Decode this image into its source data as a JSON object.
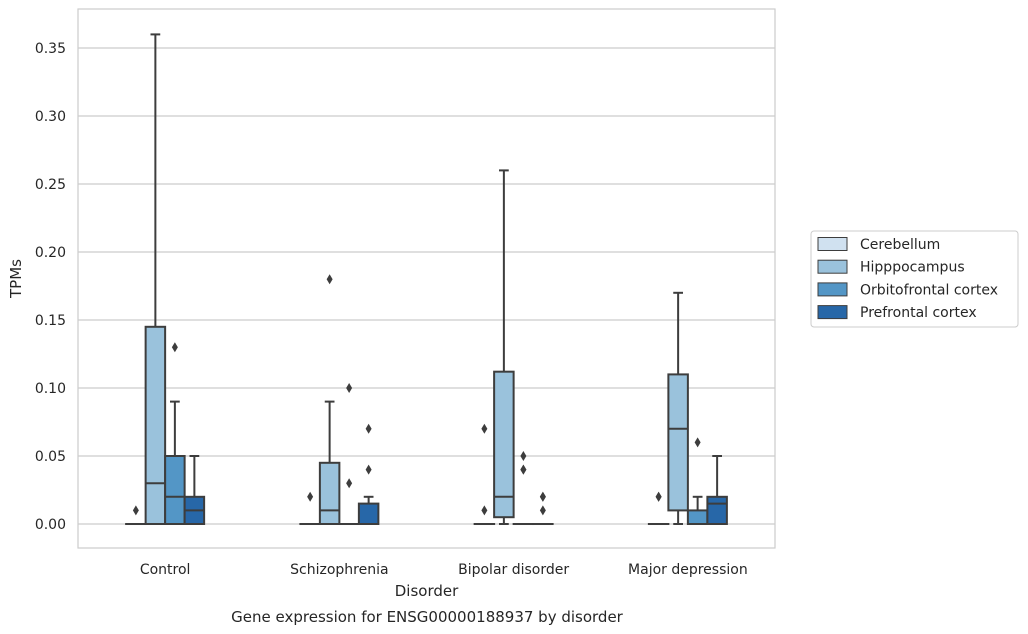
{
  "chart_data": {
    "type": "box",
    "title": "Gene expression for ENSG00000188937 by disorder",
    "xlabel": "Disorder",
    "ylabel": "TPMs",
    "ylim": [
      -0.017,
      0.375
    ],
    "yticks": [
      "0.00",
      "0.05",
      "0.10",
      "0.15",
      "0.20",
      "0.25",
      "0.30",
      "0.35"
    ],
    "ytick_values": [
      0,
      0.05,
      0.1,
      0.15,
      0.2,
      0.25,
      0.3,
      0.35
    ],
    "grid": true,
    "legend_position": "right",
    "categories": [
      "Control",
      "Schizophrenia",
      "Bipolar disorder",
      "Major depression"
    ],
    "series": [
      {
        "name": "Cerebellum",
        "color": "#d0e1f0",
        "boxes": [
          {
            "whislo": 0,
            "q1": 0,
            "med": 0,
            "q3": 0,
            "whishi": 0,
            "fliers": [
              0.01
            ]
          },
          {
            "whislo": 0,
            "q1": 0,
            "med": 0,
            "q3": 0,
            "whishi": 0,
            "fliers": [
              0.02
            ]
          },
          {
            "whislo": 0,
            "q1": 0,
            "med": 0,
            "q3": 0,
            "whishi": 0,
            "fliers": [
              0.01,
              0.07
            ]
          },
          {
            "whislo": 0,
            "q1": 0,
            "med": 0,
            "q3": 0,
            "whishi": 0,
            "fliers": [
              0.02,
              0.02
            ]
          }
        ]
      },
      {
        "name": "Hipppocampus",
        "color": "#9ac2dc",
        "boxes": [
          {
            "whislo": 0,
            "q1": 0,
            "med": 0.03,
            "q3": 0.145,
            "whishi": 0.36,
            "fliers": []
          },
          {
            "whislo": 0,
            "q1": 0,
            "med": 0.01,
            "q3": 0.045,
            "whishi": 0.09,
            "fliers": [
              0.18
            ]
          },
          {
            "whislo": 0,
            "q1": 0.005,
            "med": 0.02,
            "q3": 0.112,
            "whishi": 0.26,
            "fliers": []
          },
          {
            "whislo": 0,
            "q1": 0.01,
            "med": 0.07,
            "q3": 0.11,
            "whishi": 0.17,
            "fliers": []
          }
        ]
      },
      {
        "name": "Orbitofrontal cortex",
        "color": "#5396c6",
        "boxes": [
          {
            "whislo": 0,
            "q1": 0,
            "med": 0.02,
            "q3": 0.05,
            "whishi": 0.09,
            "fliers": [
              0.13
            ]
          },
          {
            "whislo": 0,
            "q1": 0,
            "med": 0,
            "q3": 0,
            "whishi": 0,
            "fliers": [
              0.03,
              0.1
            ]
          },
          {
            "whislo": 0,
            "q1": 0,
            "med": 0,
            "q3": 0,
            "whishi": 0,
            "fliers": [
              0.04,
              0.04,
              0.05
            ]
          },
          {
            "whislo": 0,
            "q1": 0,
            "med": 0,
            "q3": 0.01,
            "whishi": 0.02,
            "fliers": [
              0.06
            ]
          }
        ]
      },
      {
        "name": "Prefrontal cortex",
        "color": "#2767a8",
        "boxes": [
          {
            "whislo": 0,
            "q1": 0,
            "med": 0.01,
            "q3": 0.02,
            "whishi": 0.05,
            "fliers": []
          },
          {
            "whislo": 0,
            "q1": 0,
            "med": 0,
            "q3": 0.015,
            "whishi": 0.02,
            "fliers": [
              0.04,
              0.07
            ]
          },
          {
            "whislo": 0,
            "q1": 0,
            "med": 0,
            "q3": 0,
            "whishi": 0,
            "fliers": [
              0.01,
              0.02,
              0.02
            ]
          },
          {
            "whislo": 0,
            "q1": 0,
            "med": 0.015,
            "q3": 0.02,
            "whishi": 0.05,
            "fliers": []
          }
        ]
      }
    ]
  }
}
